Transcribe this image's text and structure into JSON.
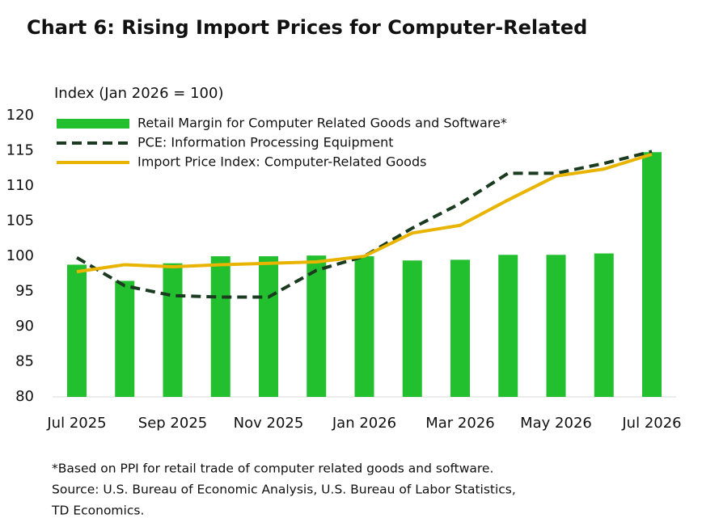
{
  "chart_data": {
    "type": "bar",
    "title": "Chart 6: Rising Import Prices for Computer-Related",
    "y_label": "Index (Jan 2026 = 100)",
    "categories": [
      "Jul 2025",
      null,
      "Sep 2025",
      null,
      "Nov 2025",
      null,
      "Jan 2026",
      null,
      "Mar 2026",
      null,
      "May 2026",
      null,
      "Jul 2026"
    ],
    "series": [
      {
        "name": "Retail Margin for Computer Related Goods and Software*",
        "type": "bar",
        "color": "#22bf2e",
        "values": [
          98.8,
          96.5,
          99.0,
          100.0,
          100.0,
          100.1,
          100.0,
          99.4,
          99.5,
          100.2,
          100.2,
          100.4,
          114.8
        ]
      },
      {
        "name": "PCE: Information Processing Equipment",
        "type": "line",
        "dashed": true,
        "color": "#1b3b20",
        "values": [
          99.8,
          95.8,
          94.4,
          94.2,
          94.2,
          98.0,
          100.0,
          104.0,
          107.5,
          111.8,
          111.8,
          113.2,
          114.9
        ]
      },
      {
        "name": "Import Price Index: Computer-Related Goods",
        "type": "line",
        "dashed": false,
        "color": "#e8b400",
        "values": [
          97.8,
          98.8,
          98.5,
          98.8,
          99.0,
          99.2,
          100.0,
          103.3,
          104.4,
          108.0,
          111.4,
          112.4,
          114.5
        ]
      }
    ],
    "ylim": [
      80,
      120
    ],
    "yticks": [
      80,
      85,
      90,
      95,
      100,
      105,
      110,
      115,
      120
    ],
    "grid": false,
    "legend": "top-left",
    "notes": [
      "*Based on PPI for retail trade of computer related goods and software.",
      "Source: U.S. Bureau of Economic Analysis, U.S. Bureau of Labor Statistics,",
      "TD Economics."
    ]
  }
}
